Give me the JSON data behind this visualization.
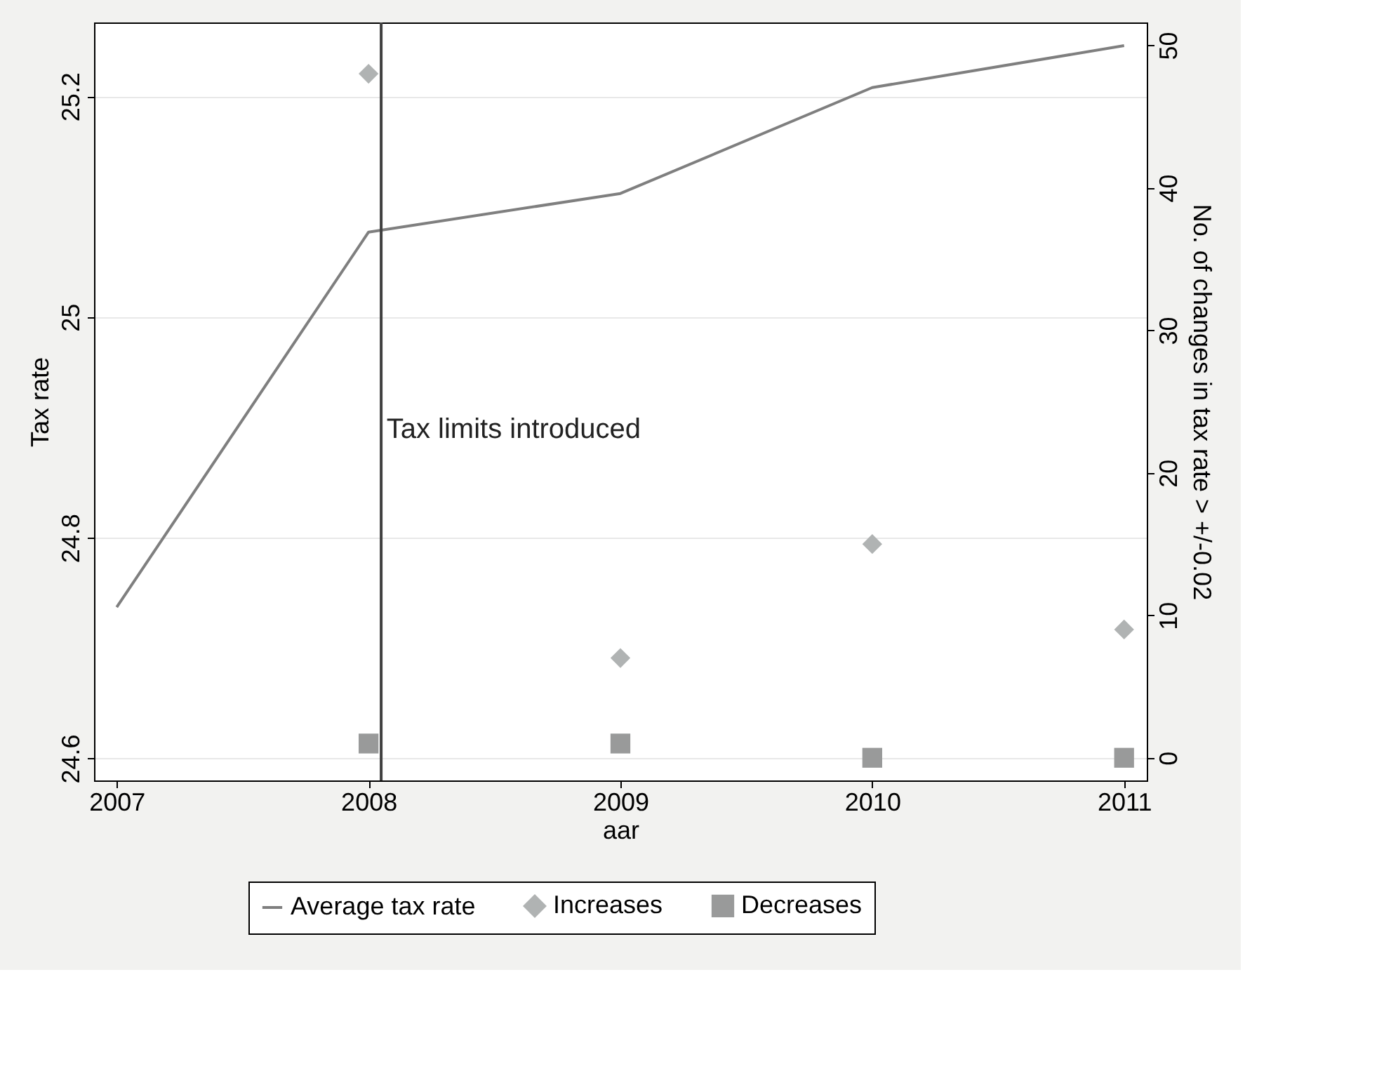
{
  "chart_data": {
    "type": "line",
    "xlabel": "aar",
    "ylabel": "Tax rate",
    "y2label": "No. of changes in tax rate > +/-0.02",
    "x": [
      2007,
      2008,
      2009,
      2010,
      2011
    ],
    "series": [
      {
        "name": "Average tax rate",
        "color": "#7f7f7f",
        "values": [
          24.737,
          25.077,
          25.112,
          25.208,
          25.246
        ]
      },
      {
        "name": "Increases",
        "type": "scatter",
        "marker": "diamond",
        "axis": "y2",
        "color": "#b0b3b3",
        "x": [
          2008,
          2009,
          2010,
          2011
        ],
        "values": [
          48,
          7,
          15,
          9
        ]
      },
      {
        "name": "Decreases",
        "type": "scatter",
        "marker": "square",
        "axis": "y2",
        "color": "#999a9a",
        "x": [
          2008,
          2009,
          2010,
          2011
        ],
        "values": [
          1,
          1,
          0,
          0
        ]
      }
    ],
    "xlim": [
      2006.91,
      2011.09
    ],
    "xticks": [
      2007,
      2008,
      2009,
      2010,
      2011
    ],
    "ylim": [
      24.58,
      25.267
    ],
    "yticks": [
      24.6,
      24.8,
      25,
      25.2
    ],
    "y2lim": [
      -1.59,
      51.6
    ],
    "y2ticks": [
      0,
      10,
      20,
      30,
      40,
      50
    ],
    "ref_lines": [
      {
        "axis": "x",
        "value": 2008.05,
        "color": "#404040"
      }
    ],
    "annotations": [
      {
        "text": "Tax limits introduced",
        "x": 2008.06,
        "y": 24.898
      }
    ],
    "grid": "y",
    "legend": "bottom"
  }
}
